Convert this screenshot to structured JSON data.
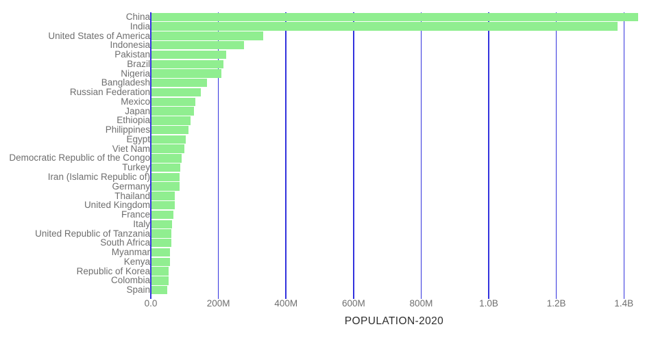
{
  "chart_data": {
    "type": "bar",
    "orientation": "horizontal",
    "title": "POPULATION-2020",
    "xlabel": "",
    "ylabel": "",
    "grid": "vertical-only",
    "legend": false,
    "axis_max_m": 1440,
    "x_ticks": [
      {
        "label": "0.0",
        "value_m": 0
      },
      {
        "label": "200M",
        "value_m": 200
      },
      {
        "label": "400M",
        "value_m": 400
      },
      {
        "label": "600M",
        "value_m": 600
      },
      {
        "label": "800M",
        "value_m": 800
      },
      {
        "label": "1.0B",
        "value_m": 1000
      },
      {
        "label": "1.2B",
        "value_m": 1200
      },
      {
        "label": "1.4B",
        "value_m": 1400
      }
    ],
    "categories": [
      "China",
      "India",
      "United States of America",
      "Indonesia",
      "Pakistan",
      "Brazil",
      "Nigeria",
      "Bangladesh",
      "Russian Federation",
      "Mexico",
      "Japan",
      "Ethiopia",
      "Philippines",
      "Egypt",
      "Viet Nam",
      "Democratic Republic of the Congo",
      "Turkey",
      "Iran (Islamic Republic of)",
      "Germany",
      "Thailand",
      "United Kingdom",
      "France",
      "Italy",
      "United Republic of Tanzania",
      "South Africa",
      "Myanmar",
      "Kenya",
      "Republic of Korea",
      "Colombia",
      "Spain"
    ],
    "values_m": [
      1439,
      1380,
      331,
      273.5,
      220.9,
      212.6,
      206.1,
      164.7,
      145.9,
      128.9,
      126.5,
      115.0,
      109.6,
      102.3,
      97.3,
      89.6,
      84.3,
      84.0,
      83.8,
      69.8,
      67.9,
      65.3,
      60.5,
      59.7,
      59.3,
      54.4,
      53.8,
      51.3,
      50.9,
      46.8
    ],
    "values_unit": "millions of people"
  },
  "colors": {
    "bar": "#90ee90",
    "grid": "#3232dd",
    "axis_text": "#6e6e6e",
    "category_text": "#6e6e6e",
    "title_text": "#2d2d2d",
    "background": "#ffffff"
  }
}
